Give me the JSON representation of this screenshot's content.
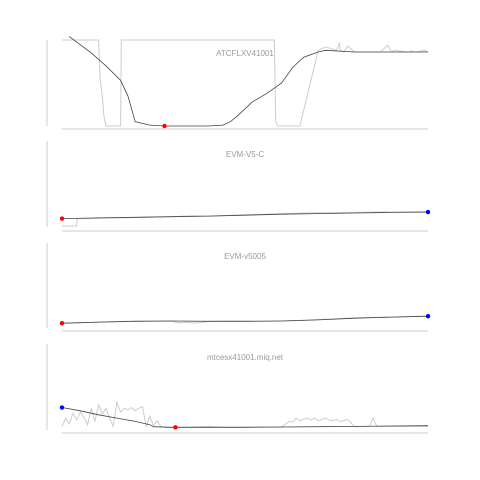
{
  "colors": {
    "raw": "#cccccc",
    "trend": "#444444",
    "min_marker": "#ff0000",
    "max_marker": "#0000ff",
    "title": "#999999"
  },
  "chart_data": [
    {
      "type": "line",
      "title": "ATCFLXV41001",
      "xlim": [
        0,
        100
      ],
      "ylim": [
        0,
        100
      ],
      "grid": false,
      "series": [
        {
          "role": "raw",
          "x": [
            0,
            10,
            10.4,
            11,
            11.5,
            12,
            16,
            16.2,
            24,
            30,
            40,
            45,
            49,
            52,
            54,
            56,
            58,
            58.4,
            59,
            63,
            65,
            70,
            72,
            75,
            75.8,
            76,
            77,
            78,
            80,
            82,
            84,
            87,
            89,
            90,
            91,
            94,
            95,
            95.5,
            96,
            97,
            99,
            100
          ],
          "y": [
            100,
            100,
            55,
            35,
            10,
            0,
            0,
            100,
            100,
            100,
            100,
            100,
            100,
            100,
            100,
            100,
            100,
            5,
            0,
            0,
            0,
            88,
            92,
            88,
            96,
            88,
            86,
            93,
            86,
            86,
            86,
            86,
            94,
            86,
            88,
            86,
            86,
            88,
            86,
            86,
            88,
            86
          ]
        },
        {
          "role": "trend",
          "x": [
            2,
            8,
            12,
            16,
            18,
            20,
            24,
            28,
            32,
            36,
            40,
            44,
            46,
            48,
            52,
            56,
            60,
            63,
            66,
            70,
            72,
            80,
            100
          ],
          "y": [
            104,
            85,
            70,
            53,
            35,
            5,
            1,
            0,
            0,
            0,
            0,
            1,
            5,
            12,
            28,
            38,
            50,
            68,
            80,
            86,
            88,
            86,
            86
          ]
        },
        {
          "role": "min-point",
          "x": [
            28
          ],
          "y": [
            0
          ]
        }
      ]
    },
    {
      "type": "line",
      "title": "EVM-V5-C",
      "xlim": [
        0,
        100
      ],
      "ylim": [
        0,
        100
      ],
      "grid": false,
      "series": [
        {
          "role": "raw",
          "x": [
            0,
            4,
            4.2,
            7.8,
            8,
            15,
            30,
            35,
            40,
            50,
            55,
            60,
            70,
            85,
            95,
            100
          ],
          "y": [
            0,
            0,
            24,
            24,
            24,
            26,
            30,
            33,
            32,
            36,
            38,
            40,
            43,
            45,
            46,
            47
          ]
        },
        {
          "role": "trend",
          "x": [
            0,
            10,
            20,
            30,
            40,
            50,
            60,
            70,
            80,
            90,
            100
          ],
          "y": [
            24,
            26,
            28,
            30,
            32,
            35,
            38,
            40,
            42,
            44,
            45
          ]
        },
        {
          "role": "min-point",
          "x": [
            0
          ],
          "y": [
            24
          ]
        },
        {
          "role": "max-point",
          "x": [
            100
          ],
          "y": [
            45
          ]
        }
      ]
    },
    {
      "type": "line",
      "title": "EVM-v5005",
      "xlim": [
        0,
        100
      ],
      "ylim": [
        0,
        100
      ],
      "grid": false,
      "series": [
        {
          "role": "raw",
          "x": [
            0,
            5,
            10,
            15,
            20,
            25,
            30,
            32,
            34,
            36,
            38,
            40,
            45,
            50,
            55,
            60,
            65,
            70,
            75,
            80,
            85,
            90,
            95,
            100
          ],
          "y": [
            17,
            19,
            21,
            23,
            25,
            25,
            24,
            18,
            20,
            18,
            19,
            24,
            25,
            25,
            24,
            25,
            27,
            30,
            33,
            36,
            38,
            39,
            41,
            42
          ]
        },
        {
          "role": "trend",
          "x": [
            0,
            10,
            20,
            30,
            40,
            50,
            60,
            70,
            80,
            90,
            100
          ],
          "y": [
            17,
            21,
            24,
            25,
            24,
            24,
            25,
            29,
            35,
            39,
            42
          ]
        },
        {
          "role": "min-point",
          "x": [
            0
          ],
          "y": [
            17
          ]
        },
        {
          "role": "max-point",
          "x": [
            100
          ],
          "y": [
            42
          ]
        }
      ]
    },
    {
      "type": "line",
      "title": "mtcesx41001.miq.net",
      "xlim": [
        0,
        100
      ],
      "ylim": [
        0,
        100
      ],
      "grid": false,
      "series": [
        {
          "role": "raw",
          "x": [
            0,
            1,
            2,
            3,
            4,
            5,
            6,
            7,
            8,
            9,
            10,
            11,
            12,
            13,
            14,
            15,
            16,
            17,
            18,
            19,
            20,
            21,
            22,
            23,
            24,
            25,
            26,
            27,
            28,
            30,
            35,
            40,
            45,
            50,
            55,
            60,
            62,
            63,
            64,
            65,
            66,
            67,
            68,
            69,
            70,
            71,
            72,
            73,
            74,
            75,
            76,
            77,
            78,
            80,
            84,
            85,
            86,
            88,
            90,
            95,
            100
          ],
          "y": [
            4,
            30,
            12,
            45,
            25,
            48,
            32,
            10,
            60,
            20,
            70,
            42,
            60,
            30,
            5,
            78,
            48,
            60,
            55,
            62,
            52,
            60,
            65,
            5,
            35,
            8,
            22,
            5,
            2,
            2,
            3,
            5,
            2,
            3,
            4,
            2,
            20,
            18,
            30,
            22,
            26,
            30,
            24,
            30,
            22,
            26,
            30,
            24,
            22,
            26,
            20,
            22,
            26,
            4,
            5,
            30,
            5,
            5,
            5,
            5,
            5
          ]
        },
        {
          "role": "trend",
          "x": [
            0,
            5,
            10,
            15,
            20,
            24,
            25,
            30,
            40,
            50,
            60,
            70,
            80,
            90,
            100
          ],
          "y": [
            62,
            52,
            40,
            30,
            20,
            10,
            4,
            2,
            2,
            2,
            3,
            4,
            5,
            6,
            7
          ]
        },
        {
          "role": "min-point",
          "x": [
            31
          ],
          "y": [
            2
          ]
        },
        {
          "role": "max-point",
          "x": [
            0
          ],
          "y": [
            62
          ]
        }
      ]
    }
  ]
}
